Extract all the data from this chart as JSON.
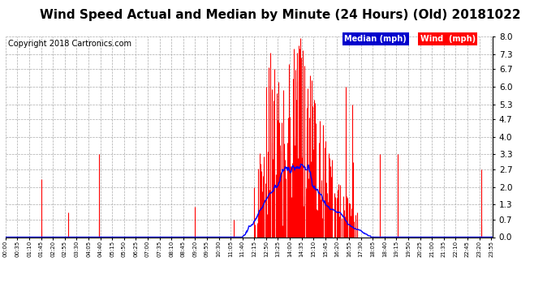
{
  "title": "Wind Speed Actual and Median by Minute (24 Hours) (Old) 20181022",
  "copyright": "Copyright 2018 Cartronics.com",
  "legend_median_label": "Median (mph)",
  "legend_wind_label": "Wind  (mph)",
  "legend_median_bg": "#0000cc",
  "legend_wind_bg": "#ff0000",
  "legend_text_color": "#ffffff",
  "ylim": [
    0.0,
    8.0
  ],
  "yticks": [
    0.0,
    0.7,
    1.3,
    2.0,
    2.7,
    3.3,
    4.0,
    4.7,
    5.3,
    6.0,
    6.7,
    7.3,
    8.0
  ],
  "title_fontsize": 11,
  "copyright_fontsize": 7,
  "bg_color": "#ffffff",
  "plot_bg_color": "#ffffff",
  "grid_color": "#aaaaaa",
  "bar_color": "#ff0000",
  "line_color": "#0000ff",
  "total_minutes": 1440
}
